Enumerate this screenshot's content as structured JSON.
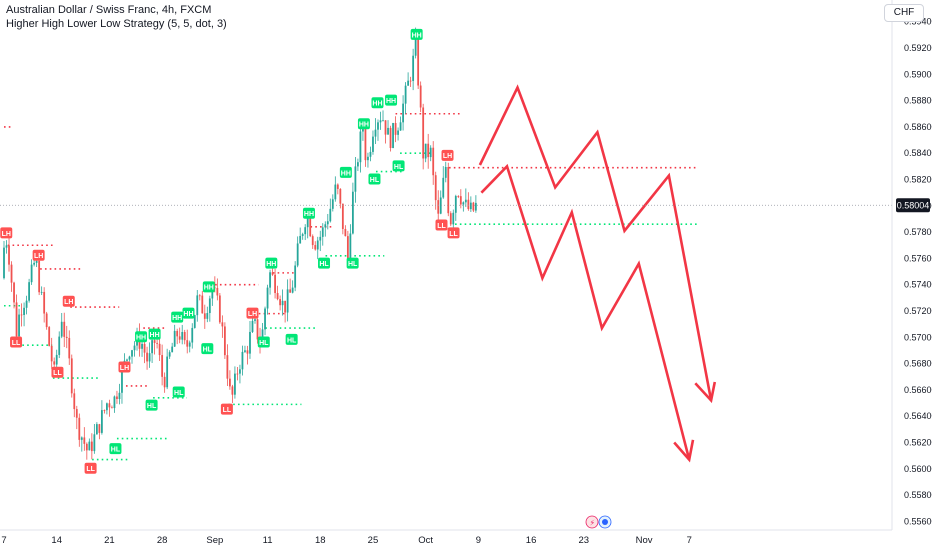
{
  "header": {
    "symbol_title": "Australian Dollar / Swiss Franc, 4h, FXCM",
    "indicator_title": "Higher High Lower Low Strategy (5, 5, dot, 3)",
    "currency": "CHF"
  },
  "colors": {
    "up": "#26a69a",
    "down": "#ef5350",
    "hh_hl": "#00e676",
    "lh_ll": "#ff5252",
    "resistance": "#f23645",
    "support": "#00e676",
    "projection": "#f23645",
    "price_badge": "#131722"
  },
  "chart_data": {
    "type": "candlestick",
    "title": "Australian Dollar / Swiss Franc, 4h, FXCM",
    "y_axis": {
      "ticks": [
        "0.59400",
        "0.59200",
        "0.59000",
        "0.58800",
        "0.58600",
        "0.58400",
        "0.58200",
        "0.58000",
        "0.57800",
        "0.57600",
        "0.57400",
        "0.57200",
        "0.57000",
        "0.56800",
        "0.56600",
        "0.56400",
        "0.56200",
        "0.56000",
        "0.55800",
        "0.55600"
      ],
      "range": [
        0.5552,
        0.5944
      ],
      "current_price": "0.58004"
    },
    "x_axis": {
      "labels": [
        {
          "text": "7",
          "t": 0
        },
        {
          "text": "14",
          "t": 7
        },
        {
          "text": "21",
          "t": 14
        },
        {
          "text": "28",
          "t": 21
        },
        {
          "text": "Sep",
          "t": 28
        },
        {
          "text": "11",
          "t": 35
        },
        {
          "text": "18",
          "t": 42
        },
        {
          "text": "25",
          "t": 49
        },
        {
          "text": "Oct",
          "t": 56
        },
        {
          "text": "9",
          "t": 63
        },
        {
          "text": "16",
          "t": 70
        },
        {
          "text": "23",
          "t": 77
        },
        {
          "text": "Nov",
          "t": 85
        },
        {
          "text": "7",
          "t": 91
        }
      ]
    },
    "price_path": [
      [
        0,
        0.5745
      ],
      [
        0.5,
        0.578
      ],
      [
        1,
        0.5762
      ],
      [
        2,
        0.5705
      ],
      [
        2.5,
        0.5722
      ],
      [
        3.5,
        0.5735
      ],
      [
        4.5,
        0.576
      ],
      [
        5.5,
        0.5722
      ],
      [
        7,
        0.5672
      ],
      [
        8,
        0.5716
      ],
      [
        9,
        0.568
      ],
      [
        10,
        0.5635
      ],
      [
        11.5,
        0.5612
      ],
      [
        12.5,
        0.5626
      ],
      [
        14,
        0.565
      ],
      [
        15,
        0.5653
      ],
      [
        16,
        0.5672
      ],
      [
        17,
        0.5692
      ],
      [
        18.5,
        0.5698
      ],
      [
        19.5,
        0.568
      ],
      [
        20.5,
        0.57
      ],
      [
        21.5,
        0.5665
      ],
      [
        22.5,
        0.569
      ],
      [
        23.5,
        0.5705
      ],
      [
        24.5,
        0.569
      ],
      [
        26,
        0.5728
      ],
      [
        27,
        0.572
      ],
      [
        28,
        0.5738
      ],
      [
        29,
        0.5718
      ],
      [
        29.5,
        0.5698
      ],
      [
        30.5,
        0.565
      ],
      [
        31.5,
        0.568
      ],
      [
        32.5,
        0.569
      ],
      [
        33.5,
        0.571
      ],
      [
        34.5,
        0.5695
      ],
      [
        35.5,
        0.575
      ],
      [
        36.5,
        0.574
      ],
      [
        37.5,
        0.5722
      ],
      [
        38.5,
        0.5735
      ],
      [
        39.5,
        0.577
      ],
      [
        40.5,
        0.5795
      ],
      [
        41.5,
        0.5772
      ],
      [
        42.5,
        0.5778
      ],
      [
        43.5,
        0.5795
      ],
      [
        44.5,
        0.5815
      ],
      [
        45.5,
        0.578
      ],
      [
        46,
        0.576
      ],
      [
        46.5,
        0.58
      ],
      [
        47.5,
        0.5845
      ],
      [
        48,
        0.586
      ],
      [
        48.5,
        0.583
      ],
      [
        49.5,
        0.5865
      ],
      [
        50.5,
        0.587
      ],
      [
        51.5,
        0.585
      ],
      [
        52.5,
        0.586
      ],
      [
        53.5,
        0.588
      ],
      [
        54.5,
        0.5905
      ],
      [
        55,
        0.592
      ],
      [
        55.5,
        0.5885
      ],
      [
        56,
        0.584
      ],
      [
        57,
        0.584
      ],
      [
        57.5,
        0.581
      ],
      [
        58,
        0.579
      ],
      [
        59,
        0.583
      ],
      [
        59.5,
        0.5785
      ],
      [
        60.5,
        0.5815
      ],
      [
        61.5,
        0.58
      ],
      [
        62.5,
        0.5795
      ],
      [
        63,
        0.58
      ]
    ],
    "pivot_labels": [
      {
        "text": "LH",
        "t": 0.3,
        "price": 0.5779,
        "kind": "low"
      },
      {
        "text": "LL",
        "t": 1.6,
        "price": 0.5696,
        "kind": "low"
      },
      {
        "text": "LH",
        "t": 4.6,
        "price": 0.5762,
        "kind": "low"
      },
      {
        "text": "LH",
        "t": 8.6,
        "price": 0.5727,
        "kind": "low"
      },
      {
        "text": "LL",
        "t": 7.1,
        "price": 0.5673,
        "kind": "low"
      },
      {
        "text": "LL",
        "t": 11.5,
        "price": 0.56,
        "kind": "low"
      },
      {
        "text": "HL",
        "t": 14.8,
        "price": 0.5615,
        "kind": "high"
      },
      {
        "text": "LH",
        "t": 16.0,
        "price": 0.5677,
        "kind": "low"
      },
      {
        "text": "HL",
        "t": 19.6,
        "price": 0.5648,
        "kind": "high"
      },
      {
        "text": "HH",
        "t": 18.2,
        "price": 0.57,
        "kind": "high"
      },
      {
        "text": "HH",
        "t": 20.0,
        "price": 0.5702,
        "kind": "high"
      },
      {
        "text": "HH",
        "t": 23.0,
        "price": 0.5715,
        "kind": "high"
      },
      {
        "text": "HH",
        "t": 24.5,
        "price": 0.5718,
        "kind": "high"
      },
      {
        "text": "HL",
        "t": 23.2,
        "price": 0.5658,
        "kind": "high"
      },
      {
        "text": "HH",
        "t": 27.2,
        "price": 0.5738,
        "kind": "high"
      },
      {
        "text": "HL",
        "t": 27.0,
        "price": 0.5691,
        "kind": "high"
      },
      {
        "text": "LL",
        "t": 29.6,
        "price": 0.5645,
        "kind": "low"
      },
      {
        "text": "LH",
        "t": 33.0,
        "price": 0.5718,
        "kind": "low"
      },
      {
        "text": "HL",
        "t": 34.5,
        "price": 0.5696,
        "kind": "high"
      },
      {
        "text": "HH",
        "t": 35.5,
        "price": 0.5756,
        "kind": "high"
      },
      {
        "text": "HL",
        "t": 38.2,
        "price": 0.5698,
        "kind": "high"
      },
      {
        "text": "HH",
        "t": 40.5,
        "price": 0.5794,
        "kind": "high"
      },
      {
        "text": "HL",
        "t": 42.5,
        "price": 0.5756,
        "kind": "high"
      },
      {
        "text": "HL",
        "t": 46.3,
        "price": 0.5756,
        "kind": "high"
      },
      {
        "text": "HH",
        "t": 45.4,
        "price": 0.5825,
        "kind": "high"
      },
      {
        "text": "HL",
        "t": 49.2,
        "price": 0.582,
        "kind": "high"
      },
      {
        "text": "HH",
        "t": 47.8,
        "price": 0.5862,
        "kind": "high"
      },
      {
        "text": "HH",
        "t": 49.6,
        "price": 0.5878,
        "kind": "high"
      },
      {
        "text": "HH",
        "t": 51.4,
        "price": 0.588,
        "kind": "high"
      },
      {
        "text": "HL",
        "t": 52.4,
        "price": 0.583,
        "kind": "high"
      },
      {
        "text": "HH",
        "t": 54.8,
        "price": 0.593,
        "kind": "high"
      },
      {
        "text": "LH",
        "t": 58.9,
        "price": 0.5838,
        "kind": "low"
      },
      {
        "text": "LL",
        "t": 58.1,
        "price": 0.5785,
        "kind": "low"
      },
      {
        "text": "LL",
        "t": 59.7,
        "price": 0.5779,
        "kind": "low"
      }
    ],
    "resistance_levels": [
      {
        "price": 0.586,
        "t_start": 0,
        "t_end": 1.2
      },
      {
        "price": 0.577,
        "t_start": 0.5,
        "t_end": 6.5
      },
      {
        "price": 0.5752,
        "t_start": 4.8,
        "t_end": 10.3
      },
      {
        "price": 0.5723,
        "t_start": 8.8,
        "t_end": 15.3
      },
      {
        "price": 0.5663,
        "t_start": 16.2,
        "t_end": 19.0
      },
      {
        "price": 0.5707,
        "t_start": 18.5,
        "t_end": 21.5
      },
      {
        "price": 0.574,
        "t_start": 27.4,
        "t_end": 33.8
      },
      {
        "price": 0.5749,
        "t_start": 35.7,
        "t_end": 38.5
      },
      {
        "price": 0.5718,
        "t_start": 33.2,
        "t_end": 37.6
      },
      {
        "price": 0.5784,
        "t_start": 40.7,
        "t_end": 43.5
      },
      {
        "price": 0.587,
        "t_start": 52.0,
        "t_end": 60.5
      },
      {
        "price": 0.5829,
        "t_start": 59.1,
        "t_end": 92.0
      }
    ],
    "support_levels": [
      {
        "price": 0.5724,
        "t_start": 0,
        "t_end": 2.3
      },
      {
        "price": 0.5694,
        "t_start": 1.8,
        "t_end": 6.4
      },
      {
        "price": 0.5669,
        "t_start": 6.5,
        "t_end": 12.5
      },
      {
        "price": 0.5607,
        "t_start": 11.7,
        "t_end": 16.5
      },
      {
        "price": 0.5623,
        "t_start": 15.0,
        "t_end": 22.0
      },
      {
        "price": 0.5654,
        "t_start": 19.8,
        "t_end": 24.3
      },
      {
        "price": 0.5649,
        "t_start": 29.8,
        "t_end": 39.5
      },
      {
        "price": 0.5707,
        "t_start": 34.7,
        "t_end": 41.5
      },
      {
        "price": 0.5762,
        "t_start": 42.7,
        "t_end": 50.5
      },
      {
        "price": 0.5826,
        "t_start": 49.4,
        "t_end": 53.0
      },
      {
        "price": 0.584,
        "t_start": 52.6,
        "t_end": 57.0
      },
      {
        "price": 0.5786,
        "t_start": 59.9,
        "t_end": 92.0
      }
    ],
    "projection_paths": [
      {
        "name": "",
        "points": [
          [
            63.2,
            0.5831
          ],
          [
            68.2,
            0.589
          ],
          [
            73.2,
            0.5814
          ],
          [
            78.8,
            0.5856
          ],
          [
            82.4,
            0.5781
          ],
          [
            88.3,
            0.5823
          ],
          [
            93.9,
            0.5652
          ]
        ]
      },
      {
        "name": "",
        "points": [
          [
            63.4,
            0.581
          ],
          [
            66.8,
            0.583
          ],
          [
            71.5,
            0.5745
          ],
          [
            75.4,
            0.5795
          ],
          [
            79.4,
            0.5707
          ],
          [
            84.3,
            0.5756
          ],
          [
            91.0,
            0.5607
          ]
        ]
      }
    ],
    "projection_arrowheads": [
      [
        [
          91.8,
          0.5665
        ],
        [
          93.9,
          0.5652
        ],
        [
          94.4,
          0.5666
        ]
      ],
      [
        [
          89.0,
          0.562
        ],
        [
          91.0,
          0.5607
        ],
        [
          91.5,
          0.5622
        ]
      ]
    ]
  }
}
